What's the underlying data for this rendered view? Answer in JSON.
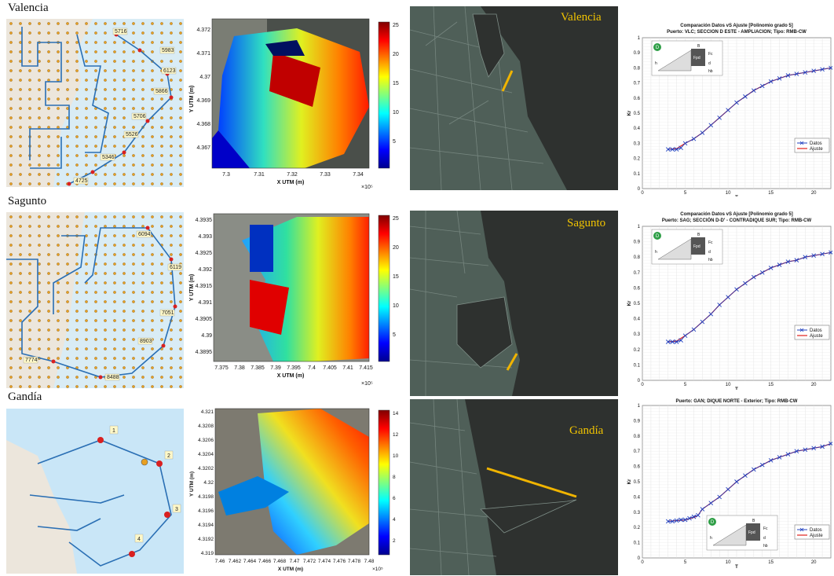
{
  "rows": [
    {
      "title": "Valencia",
      "map_labels": [
        "5716",
        "5983",
        "6123",
        "5866",
        "5706",
        "5526",
        "5346",
        "4725"
      ],
      "bathy": {
        "y_ticks": [
          "4.372",
          "4.371",
          "4.37",
          "4.369",
          "4.368",
          "4.367"
        ],
        "x_ticks": [
          "7.3",
          "7.31",
          "7.32",
          "7.33",
          "7.34"
        ],
        "x_exp": "×10⁵",
        "xlabel": "X UTM (m)",
        "ylabel": "Y UTM (m)",
        "cb_ticks": [
          "25",
          "20",
          "15",
          "10",
          "5"
        ]
      },
      "city_label": "Valencia",
      "chart": {
        "title1": "Comparación Datos vS Ajuste [Polinomio grado 5]",
        "title2": "Puerto: VLC;  SECCION D ESTE - AMPLIACION; Tipo: RMB-CW",
        "ylabel": "Kr",
        "xlabel": "T",
        "y_ticks": [
          "1",
          "0.9",
          "0.8",
          "0.7",
          "0.6",
          "0.5",
          "0.4",
          "0.3",
          "0.2",
          "0.1",
          "0"
        ],
        "x_ticks": [
          "0",
          "5",
          "10",
          "15",
          "20"
        ],
        "legend": [
          "Datos",
          "Ajuste"
        ]
      }
    },
    {
      "title": "Sagunto",
      "map_labels": [
        "6094",
        "6119",
        "7051",
        "8903",
        "7774",
        "8488"
      ],
      "bathy": {
        "y_ticks": [
          "4.3935",
          "4.393",
          "4.3925",
          "4.392",
          "4.3915",
          "4.391",
          "4.3905",
          "4.39",
          "4.3895"
        ],
        "x_ticks": [
          "7.375",
          "7.38",
          "7.385",
          "7.39",
          "7.395",
          "7.4",
          "7.405",
          "7.41",
          "7.415"
        ],
        "x_exp": "×10⁵",
        "xlabel": "X UTM (m)",
        "ylabel": "Y UTM (m)",
        "cb_ticks": [
          "25",
          "20",
          "15",
          "10",
          "5"
        ]
      },
      "city_label": "Sagunto",
      "chart": {
        "title1": "Comparación Datos vS Ajuste [Polinomio grado 5]",
        "title2": "Puerto: SAG;  SECCIÓN D-D' - CONTRADIQUE SUR; Tipo: RMB-CW",
        "ylabel": "Kr",
        "xlabel": "T",
        "y_ticks": [
          "1",
          "0.9",
          "0.8",
          "0.7",
          "0.6",
          "0.5",
          "0.4",
          "0.3",
          "0.2",
          "0.1",
          "0"
        ],
        "x_ticks": [
          "0",
          "5",
          "10",
          "15",
          "20"
        ],
        "legend": [
          "Datos",
          "Ajuste"
        ]
      }
    },
    {
      "title": "Gandía",
      "map_labels": [
        "1",
        "2",
        "3",
        "4"
      ],
      "bathy": {
        "y_ticks": [
          "4.321",
          "4.3208",
          "4.3206",
          "4.3204",
          "4.3202",
          "4.32",
          "4.3198",
          "4.3196",
          "4.3194",
          "4.3192",
          "4.319"
        ],
        "x_ticks": [
          "7.46",
          "7.462",
          "7.464",
          "7.466",
          "7.468",
          "7.47",
          "7.472",
          "7.474",
          "7.476",
          "7.478",
          "7.48"
        ],
        "x_exp": "×10⁵",
        "xlabel": "X UTM (m)",
        "ylabel": "Y UTM (m)",
        "cb_ticks": [
          "14",
          "12",
          "10",
          "8",
          "6",
          "4",
          "2"
        ]
      },
      "city_label": "Gandía",
      "chart": {
        "title1": "",
        "title2": "Puerto: GAN;  DIQUE NORTE - Exterior; Tipo: RMB-CW",
        "ylabel": "Kr",
        "xlabel": "T",
        "y_ticks": [
          "1",
          "0.9",
          "0.8",
          "0.7",
          "0.6",
          "0.5",
          "0.4",
          "0.3",
          "0.2",
          "0.1",
          "0"
        ],
        "x_ticks": [
          "0",
          "5",
          "10",
          "15",
          "20"
        ],
        "legend": [
          "Datos",
          "Ajuste"
        ]
      }
    }
  ],
  "schematic_labels": [
    "D",
    "B",
    "Fpd",
    "Fc",
    "d",
    "h",
    "hb"
  ],
  "colors": {
    "datos": "#1f3fbf",
    "ajuste": "#e0201c",
    "yellow_line": "#f0b400",
    "dark_map": "#2e312f",
    "route": "#2a6fb4"
  },
  "chart_data": [
    {
      "type": "line",
      "title": "Comparación Datos vS Ajuste [Polinomio grado 5]",
      "subtitle": "Puerto: VLC;  SECCION D ESTE - AMPLIACION; Tipo: RMB-CW",
      "xlabel": "T",
      "ylabel": "Kr",
      "xlim": [
        0,
        22
      ],
      "ylim": [
        0,
        1
      ],
      "series": [
        {
          "name": "Datos",
          "x": [
            3,
            3.5,
            4,
            4.5,
            5,
            6,
            7,
            8,
            9,
            10,
            11,
            12,
            13,
            14,
            15,
            16,
            17,
            18,
            19,
            20,
            21,
            22
          ],
          "y": [
            0.26,
            0.26,
            0.26,
            0.27,
            0.3,
            0.33,
            0.37,
            0.42,
            0.47,
            0.52,
            0.57,
            0.61,
            0.65,
            0.68,
            0.71,
            0.73,
            0.75,
            0.76,
            0.77,
            0.78,
            0.79,
            0.8
          ]
        },
        {
          "name": "Ajuste",
          "x": [
            3,
            4,
            5,
            6,
            7,
            8,
            9,
            10,
            11,
            12,
            13,
            14,
            15,
            16,
            17,
            18,
            19,
            20,
            21,
            22
          ],
          "y": [
            0.26,
            0.265,
            0.3,
            0.33,
            0.37,
            0.42,
            0.47,
            0.52,
            0.57,
            0.61,
            0.65,
            0.68,
            0.71,
            0.73,
            0.75,
            0.76,
            0.77,
            0.78,
            0.79,
            0.8
          ]
        }
      ]
    },
    {
      "type": "line",
      "title": "Comparación Datos vS Ajuste [Polinomio grado 5]",
      "subtitle": "Puerto: SAG;  SECCIÓN D-D' - CONTRADIQUE SUR; Tipo: RMB-CW",
      "xlabel": "T",
      "ylabel": "Kr",
      "xlim": [
        0,
        22
      ],
      "ylim": [
        0,
        1
      ],
      "series": [
        {
          "name": "Datos",
          "x": [
            3,
            3.5,
            4,
            4.5,
            5,
            6,
            7,
            8,
            9,
            10,
            11,
            12,
            13,
            14,
            15,
            16,
            17,
            18,
            19,
            20,
            21,
            22
          ],
          "y": [
            0.25,
            0.25,
            0.25,
            0.26,
            0.29,
            0.33,
            0.38,
            0.43,
            0.49,
            0.54,
            0.59,
            0.63,
            0.67,
            0.7,
            0.73,
            0.75,
            0.77,
            0.78,
            0.8,
            0.81,
            0.82,
            0.83
          ]
        },
        {
          "name": "Ajuste",
          "x": [
            3,
            4,
            5,
            6,
            7,
            8,
            9,
            10,
            11,
            12,
            13,
            14,
            15,
            16,
            17,
            18,
            19,
            20,
            21,
            22
          ],
          "y": [
            0.25,
            0.255,
            0.29,
            0.33,
            0.38,
            0.43,
            0.49,
            0.54,
            0.59,
            0.63,
            0.67,
            0.7,
            0.73,
            0.75,
            0.77,
            0.78,
            0.8,
            0.81,
            0.82,
            0.83
          ]
        }
      ]
    },
    {
      "type": "line",
      "title": "",
      "subtitle": "Puerto: GAN;  DIQUE NORTE - Exterior; Tipo: RMB-CW",
      "xlabel": "T",
      "ylabel": "Kr",
      "xlim": [
        0,
        22
      ],
      "ylim": [
        0,
        1
      ],
      "series": [
        {
          "name": "Datos",
          "x": [
            3,
            3.5,
            4,
            4.5,
            5,
            5.5,
            6,
            6.5,
            7,
            8,
            9,
            10,
            11,
            12,
            13,
            14,
            15,
            16,
            17,
            18,
            19,
            20,
            21,
            22
          ],
          "y": [
            0.24,
            0.24,
            0.245,
            0.25,
            0.25,
            0.26,
            0.27,
            0.28,
            0.32,
            0.36,
            0.4,
            0.45,
            0.5,
            0.54,
            0.58,
            0.61,
            0.64,
            0.66,
            0.68,
            0.7,
            0.71,
            0.72,
            0.73,
            0.75
          ]
        },
        {
          "name": "Ajuste",
          "x": [
            3,
            4,
            5,
            6,
            6.5,
            7,
            8,
            9,
            10,
            11,
            12,
            13,
            14,
            15,
            16,
            17,
            18,
            19,
            20,
            21,
            22
          ],
          "y": [
            0.24,
            0.245,
            0.25,
            0.265,
            0.28,
            0.32,
            0.36,
            0.4,
            0.45,
            0.5,
            0.54,
            0.58,
            0.61,
            0.64,
            0.66,
            0.68,
            0.7,
            0.71,
            0.72,
            0.73,
            0.75
          ]
        }
      ]
    }
  ]
}
